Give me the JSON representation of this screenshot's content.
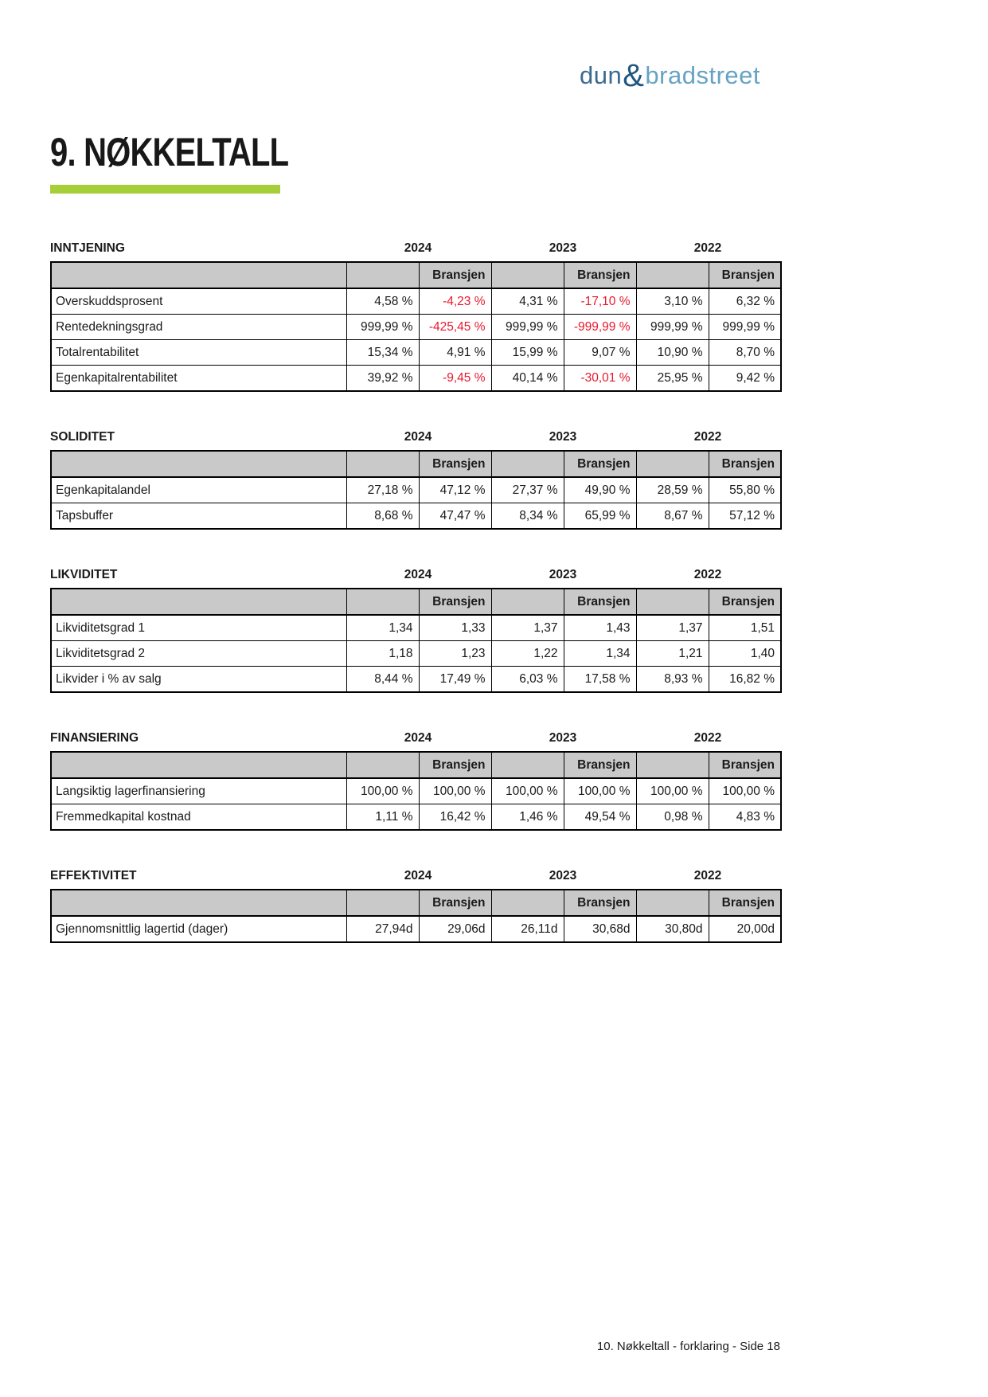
{
  "page": {
    "title": "9. NØKKELTALL",
    "footer": "10. Nøkkeltall - forklaring - Side 18"
  },
  "colors": {
    "accent_green": "#a6ce39",
    "negative_red": "#e8192d",
    "header_gray": "#c9c9c9",
    "logo_dun": "#3b6a90",
    "logo_amp": "#20567e",
    "logo_bradstreet": "#66a3c3"
  },
  "logo": {
    "part1": "dun",
    "amp": "&",
    "part2": "bradstreet"
  },
  "years": [
    "2024",
    "2023",
    "2022"
  ],
  "subheader_label": "Bransjen",
  "sections": [
    {
      "title": "INNTJENING",
      "rows": [
        {
          "label": "Overskuddsprosent",
          "values": [
            "4,58 %",
            "-4,23 %",
            "4,31 %",
            "-17,10 %",
            "3,10 %",
            "6,32 %"
          ]
        },
        {
          "label": "Rentedekningsgrad",
          "values": [
            "999,99 %",
            "-425,45 %",
            "999,99 %",
            "-999,99 %",
            "999,99 %",
            "999,99 %"
          ]
        },
        {
          "label": "Totalrentabilitet",
          "values": [
            "15,34 %",
            "4,91 %",
            "15,99 %",
            "9,07 %",
            "10,90 %",
            "8,70 %"
          ]
        },
        {
          "label": "Egenkapitalrentabilitet",
          "values": [
            "39,92 %",
            "-9,45 %",
            "40,14 %",
            "-30,01 %",
            "25,95 %",
            "9,42 %"
          ]
        }
      ]
    },
    {
      "title": "SOLIDITET",
      "rows": [
        {
          "label": "Egenkapitalandel",
          "values": [
            "27,18 %",
            "47,12 %",
            "27,37 %",
            "49,90 %",
            "28,59 %",
            "55,80 %"
          ]
        },
        {
          "label": "Tapsbuffer",
          "values": [
            "8,68 %",
            "47,47 %",
            "8,34 %",
            "65,99 %",
            "8,67 %",
            "57,12 %"
          ]
        }
      ]
    },
    {
      "title": "LIKVIDITET",
      "rows": [
        {
          "label": "Likviditetsgrad 1",
          "values": [
            "1,34",
            "1,33",
            "1,37",
            "1,43",
            "1,37",
            "1,51"
          ]
        },
        {
          "label": "Likviditetsgrad 2",
          "values": [
            "1,18",
            "1,23",
            "1,22",
            "1,34",
            "1,21",
            "1,40"
          ]
        },
        {
          "label": "Likvider i % av salg",
          "values": [
            "8,44 %",
            "17,49 %",
            "6,03 %",
            "17,58 %",
            "8,93 %",
            "16,82 %"
          ]
        }
      ]
    },
    {
      "title": "FINANSIERING",
      "rows": [
        {
          "label": "Langsiktig lagerfinansiering",
          "values": [
            "100,00 %",
            "100,00 %",
            "100,00 %",
            "100,00 %",
            "100,00 %",
            "100,00 %"
          ]
        },
        {
          "label": "Fremmedkapital kostnad",
          "values": [
            "1,11 %",
            "16,42 %",
            "1,46 %",
            "49,54 %",
            "0,98 %",
            "4,83 %"
          ]
        }
      ]
    },
    {
      "title": "EFFEKTIVITET",
      "rows": [
        {
          "label": "Gjennomsnittlig lagertid (dager)",
          "values": [
            "27,94d",
            "29,06d",
            "26,11d",
            "30,68d",
            "30,80d",
            "20,00d"
          ]
        }
      ]
    }
  ]
}
